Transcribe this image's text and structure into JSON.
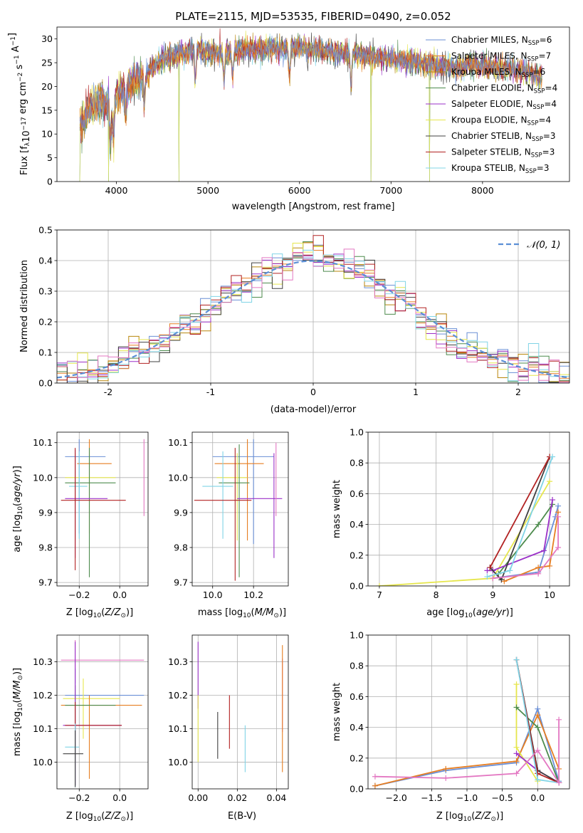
{
  "palette": [
    "#6a8fd6",
    "#e67e22",
    "#b8860b",
    "#4d8b4d",
    "#9b30c8",
    "#e6e64d",
    "#404040",
    "#b22222",
    "#80d4e6",
    "#e377c2"
  ],
  "chart_data": [
    {
      "id": "spectrum",
      "type": "line",
      "title": "PLATE=2115, MJD=53535, FIBERID=0490, z=0.052",
      "xlabel": "wavelength [Angstrom, rest frame]",
      "ylabel": "Flux [f",
      "ylabel_full": "Flux [fλ10⁻¹⁷ erg cm⁻² s⁻¹ A⁻¹]",
      "xlim": [
        3350,
        8950
      ],
      "ylim": [
        0,
        32.5
      ],
      "xticks": [
        4000,
        5000,
        6000,
        7000,
        8000
      ],
      "yticks": [
        0,
        5,
        10,
        15,
        20,
        25,
        30
      ],
      "grid": false,
      "legend_position": "upper-right",
      "legend": [
        {
          "base": "Chabrier MILES, N",
          "sub": "SSP",
          "tail": "=6"
        },
        {
          "base": "Salpeter MILES, N",
          "sub": "SSP",
          "tail": "=7"
        },
        {
          "base": "Kroupa MILES, N",
          "sub": "SSP",
          "tail": "=6"
        },
        {
          "base": "Chabrier ELODIE, N",
          "sub": "SSP",
          "tail": "=4"
        },
        {
          "base": "Salpeter ELODIE, N",
          "sub": "SSP",
          "tail": "=4"
        },
        {
          "base": "Kroupa ELODIE, N",
          "sub": "SSP",
          "tail": "=4"
        },
        {
          "base": "Chabrier STELIB, N",
          "sub": "SSP",
          "tail": "=3"
        },
        {
          "base": "Salpeter STELIB, N",
          "sub": "SSP",
          "tail": "=3"
        },
        {
          "base": "Kroupa STELIB, N",
          "sub": "SSP",
          "tail": "=3"
        }
      ],
      "continuum_anchor_points": {
        "x": [
          3600,
          3650,
          3700,
          3800,
          3900,
          3950,
          4000,
          4100,
          4200,
          4300,
          4400,
          4500,
          4700,
          4900,
          5100,
          5300,
          5500,
          5700,
          5900,
          6100,
          6300,
          6500,
          6700,
          6900,
          7100,
          7300,
          7500,
          7700,
          7900,
          8100,
          8300,
          8500,
          8650
        ],
        "y": [
          12.0,
          13.5,
          15.0,
          17.0,
          16.0,
          14.0,
          18.0,
          20.0,
          21.0,
          22.0,
          24.0,
          26.0,
          27.0,
          27.5,
          27.0,
          27.5,
          28.0,
          28.0,
          28.0,
          28.0,
          27.5,
          27.0,
          26.5,
          26.0,
          25.5,
          25.0,
          24.5,
          24.0,
          24.5,
          24.0,
          23.5,
          23.0,
          22.0
        ]
      },
      "absorption_features_x": [
        3934,
        3969,
        4102,
        4304,
        4861,
        5175,
        5270,
        5890,
        6563
      ],
      "data_gaps_x": [
        3600,
        3915,
        4685,
        6780,
        7420
      ]
    },
    {
      "id": "residuals",
      "type": "step",
      "xlabel": "(data-model)/error",
      "ylabel": "Normed distribution",
      "xlim": [
        -2.5,
        2.5
      ],
      "ylim": [
        0,
        0.5
      ],
      "xticks": [
        -2,
        -1,
        0,
        1,
        2
      ],
      "yticks": [
        0.0,
        0.1,
        0.2,
        0.3,
        0.4,
        0.5
      ],
      "grid": true,
      "legend_position": "upper-right",
      "legend_label": "𝒩(0, 1)",
      "bin_width": 0.1,
      "reference_curve": "N(0,1) dashed",
      "series_note": "9 step histograms, one per model",
      "representative_bins": {
        "x": [
          -2.45,
          -2.35,
          -2.25,
          -2.15,
          -2.05,
          -1.95,
          -1.85,
          -1.75,
          -1.65,
          -1.55,
          -1.45,
          -1.35,
          -1.25,
          -1.15,
          -1.05,
          -0.95,
          -0.85,
          -0.75,
          -0.65,
          -0.55,
          -0.45,
          -0.35,
          -0.25,
          -0.15,
          -0.05,
          0.05,
          0.15,
          0.25,
          0.35,
          0.45,
          0.55,
          0.65,
          0.75,
          0.85,
          0.95,
          1.05,
          1.15,
          1.25,
          1.35,
          1.45,
          1.55,
          1.65,
          1.75,
          1.85,
          1.95,
          2.05,
          2.15,
          2.25,
          2.35,
          2.45
        ],
        "y": [
          0.02,
          0.025,
          0.03,
          0.035,
          0.045,
          0.06,
          0.08,
          0.1,
          0.11,
          0.12,
          0.14,
          0.16,
          0.19,
          0.2,
          0.23,
          0.25,
          0.28,
          0.3,
          0.32,
          0.35,
          0.36,
          0.37,
          0.4,
          0.41,
          0.42,
          0.42,
          0.41,
          0.39,
          0.38,
          0.37,
          0.35,
          0.33,
          0.3,
          0.28,
          0.26,
          0.2,
          0.18,
          0.16,
          0.14,
          0.12,
          0.11,
          0.1,
          0.08,
          0.07,
          0.06,
          0.05,
          0.04,
          0.035,
          0.03,
          0.02
        ]
      }
    },
    {
      "id": "z_vs_age",
      "type": "errorbar",
      "xlabel": "Z [log",
      "xlabel_full": "Z [log10(Z/Z⊙)]",
      "ylabel": "age [log10(age/yr)]",
      "xlim": [
        -0.31,
        0.14
      ],
      "ylim": [
        9.69,
        10.13
      ],
      "xticks": [
        -0.2,
        0.0
      ],
      "xticklabels": [
        "−0.2",
        "0.0"
      ],
      "yticks": [
        9.7,
        9.8,
        9.9,
        10.0,
        10.1
      ],
      "grid": true,
      "points": [
        {
          "x": -0.2,
          "y": 10.06,
          "xerr": [
            0.07,
            0.13
          ],
          "yerr": [
            0.22,
            0.05
          ],
          "c": 0
        },
        {
          "x": -0.15,
          "y": 10.04,
          "xerr": [
            0.06,
            0.11
          ],
          "yerr": [
            0.2,
            0.07
          ],
          "c": 1
        },
        {
          "x": -0.22,
          "y": 10.0,
          "xerr": [
            0.05,
            0.2
          ],
          "yerr": [
            0.18,
            0.07
          ],
          "c": 5
        },
        {
          "x": -0.15,
          "y": 9.985,
          "xerr": [
            0.12,
            0.13
          ],
          "yerr": [
            0.27,
            0.1
          ],
          "c": 3
        },
        {
          "x": -0.2,
          "y": 9.975,
          "xerr": [
            0.05,
            0.04
          ],
          "yerr": [
            0.15,
            0.1
          ],
          "c": 8
        },
        {
          "x": -0.22,
          "y": 9.94,
          "xerr": [
            0.05,
            0.16
          ],
          "yerr": [
            0.17,
            0.14
          ],
          "c": 4
        },
        {
          "x": -0.22,
          "y": 9.935,
          "xerr": [
            0.07,
            0.25
          ],
          "yerr": [
            0.2,
            0.15
          ],
          "c": 7
        },
        {
          "x": 0.12,
          "y": 10.06,
          "xerr": [
            0.0,
            0.0
          ],
          "yerr": [
            0.17,
            0.05
          ],
          "c": 9
        }
      ]
    },
    {
      "id": "mass_vs_age",
      "type": "errorbar",
      "xlabel": "mass [log",
      "xlabel_full": "mass [log10(M/M⊙)]",
      "xlim": [
        9.9,
        10.37
      ],
      "ylim": [
        9.69,
        10.13
      ],
      "xticks": [
        10.0,
        10.2
      ],
      "xticklabels": [
        "10.0",
        "10.2"
      ],
      "yticks": [
        9.7,
        9.8,
        9.9,
        10.0,
        10.1
      ],
      "grid": true,
      "points": [
        {
          "x": 10.2,
          "y": 10.06,
          "xerr": [
            0.2,
            0.1
          ],
          "yerr": [
            0.25,
            0.05
          ],
          "c": 0
        },
        {
          "x": 10.17,
          "y": 10.04,
          "xerr": [
            0.16,
            0.08
          ],
          "yerr": [
            0.22,
            0.07
          ],
          "c": 1
        },
        {
          "x": 10.12,
          "y": 10.0,
          "xerr": [
            0.1,
            0.05
          ],
          "yerr": [
            0.18,
            0.07
          ],
          "c": 5
        },
        {
          "x": 10.13,
          "y": 9.985,
          "xerr": [
            0.1,
            0.05
          ],
          "yerr": [
            0.27,
            0.11
          ],
          "c": 3
        },
        {
          "x": 10.05,
          "y": 9.975,
          "xerr": [
            0.1,
            0.05
          ],
          "yerr": [
            0.15,
            0.1
          ],
          "c": 8
        },
        {
          "x": 10.3,
          "y": 9.94,
          "xerr": [
            0.18,
            0.04
          ],
          "yerr": [
            0.17,
            0.13
          ],
          "c": 4
        },
        {
          "x": 10.11,
          "y": 9.935,
          "xerr": [
            0.2,
            0.08
          ],
          "yerr": [
            0.23,
            0.15
          ],
          "c": 7
        },
        {
          "x": 10.31,
          "y": 10.06,
          "xerr": [
            0.0,
            0.0
          ],
          "yerr": [
            0.17,
            0.04
          ],
          "c": 9
        }
      ]
    },
    {
      "id": "age_vs_weight",
      "type": "line",
      "xlabel": "age [log10(age/yr)]",
      "ylabel": "mass weight",
      "xlim": [
        6.8,
        10.35
      ],
      "ylim": [
        0,
        1.0
      ],
      "xticks": [
        7,
        8,
        9,
        10
      ],
      "yticks": [
        0.0,
        0.2,
        0.4,
        0.6,
        0.8,
        1.0
      ],
      "grid": true,
      "series": [
        {
          "c": 0,
          "x": [
            9.0,
            9.8,
            10.1,
            10.15
          ],
          "y": [
            0.05,
            0.09,
            0.45,
            0.52
          ]
        },
        {
          "c": 1,
          "x": [
            9.2,
            9.8,
            10.0,
            10.15
          ],
          "y": [
            0.03,
            0.12,
            0.13,
            0.48
          ]
        },
        {
          "c": 5,
          "x": [
            7.0,
            9.0,
            10.0
          ],
          "y": [
            0.0,
            0.05,
            0.68
          ]
        },
        {
          "c": 3,
          "x": [
            9.1,
            9.8,
            10.05
          ],
          "y": [
            0.08,
            0.4,
            0.53
          ]
        },
        {
          "c": 4,
          "x": [
            8.9,
            9.0,
            9.9,
            10.05
          ],
          "y": [
            0.1,
            0.1,
            0.23,
            0.56
          ]
        },
        {
          "c": 6,
          "x": [
            8.95,
            9.15,
            10.0
          ],
          "y": [
            0.12,
            0.04,
            0.84
          ]
        },
        {
          "c": 7,
          "x": [
            8.95,
            10.0
          ],
          "y": [
            0.12,
            0.84
          ]
        },
        {
          "c": 8,
          "x": [
            8.9,
            9.3,
            10.05
          ],
          "y": [
            0.06,
            0.1,
            0.84
          ]
        },
        {
          "c": 9,
          "x": [
            9.0,
            9.8,
            10.15,
            10.15
          ],
          "y": [
            0.05,
            0.08,
            0.25,
            0.45
          ]
        }
      ]
    },
    {
      "id": "z_vs_mass",
      "type": "errorbar",
      "xlabel": "Z [log",
      "ylabel": "mass [log10(M/M⊙)]",
      "xlim": [
        -0.31,
        0.14
      ],
      "ylim": [
        9.92,
        10.38
      ],
      "xticks": [
        -0.2,
        0.0
      ],
      "xticklabels": [
        "−0.2",
        "0.0"
      ],
      "yticks": [
        10.0,
        10.1,
        10.2,
        10.3
      ],
      "grid": true,
      "points": [
        {
          "x": -0.22,
          "y": 10.305,
          "xerr": [
            0.07,
            0.34
          ],
          "yerr": [
            0.07,
            0.06
          ],
          "c": 9
        },
        {
          "x": -0.22,
          "y": 10.2,
          "xerr": [
            0.05,
            0.34
          ],
          "yerr": [
            0.27,
            0.08
          ],
          "c": 0
        },
        {
          "x": -0.18,
          "y": 10.19,
          "xerr": [
            0.1,
            0.18
          ],
          "yerr": [
            0.12,
            0.06
          ],
          "c": 5
        },
        {
          "x": -0.15,
          "y": 10.17,
          "xerr": [
            0.14,
            0.26
          ],
          "yerr": [
            0.22,
            0.03
          ],
          "c": 1
        },
        {
          "x": -0.22,
          "y": 10.17,
          "xerr": [
            0.05,
            0.2
          ],
          "yerr": [
            0.17,
            0.06
          ],
          "c": 3
        },
        {
          "x": -0.22,
          "y": 10.11,
          "xerr": [
            0.06,
            0.23
          ],
          "yerr": [
            0.18,
            0.25
          ],
          "c": 4
        },
        {
          "x": -0.22,
          "y": 10.11,
          "xerr": [
            0.05,
            0.23
          ],
          "yerr": [
            0.18,
            0.07
          ],
          "c": 7
        },
        {
          "x": -0.22,
          "y": 10.045,
          "xerr": [
            0.05,
            0.02
          ],
          "yerr": [
            0.12,
            0.07
          ],
          "c": 8
        },
        {
          "x": -0.22,
          "y": 10.025,
          "xerr": [
            0.06,
            0.04
          ],
          "yerr": [
            0.1,
            0.07
          ],
          "c": 6
        }
      ]
    },
    {
      "id": "ebv_vs_mass",
      "type": "errorbar",
      "xlabel": "E(B-V)",
      "xlim": [
        -0.003,
        0.046
      ],
      "ylim": [
        9.92,
        10.38
      ],
      "xticks": [
        0.0,
        0.02,
        0.04
      ],
      "xticklabels": [
        "0.00",
        "0.02",
        "0.04"
      ],
      "yticks": [
        10.0,
        10.1,
        10.2,
        10.3
      ],
      "grid": true,
      "points": [
        {
          "x": 0.0,
          "y": 10.26,
          "xerr": [
            0,
            0
          ],
          "yerr": [
            0.1,
            0.1
          ],
          "c": 4
        },
        {
          "x": 0.0,
          "y": 10.1,
          "xerr": [
            0,
            0
          ],
          "yerr": [
            0.1,
            0.1
          ],
          "c": 5
        },
        {
          "x": 0.01,
          "y": 10.08,
          "xerr": [
            0,
            0
          ],
          "yerr": [
            0.07,
            0.07
          ],
          "c": 6
        },
        {
          "x": 0.016,
          "y": 10.12,
          "xerr": [
            0,
            0
          ],
          "yerr": [
            0.08,
            0.08
          ],
          "c": 7
        },
        {
          "x": 0.024,
          "y": 10.04,
          "xerr": [
            0,
            0
          ],
          "yerr": [
            0.07,
            0.07
          ],
          "c": 8
        },
        {
          "x": 0.043,
          "y": 10.2,
          "xerr": [
            0,
            0
          ],
          "yerr": [
            0.11,
            0.11
          ],
          "c": 9
        },
        {
          "x": 0.043,
          "y": 10.16,
          "xerr": [
            0,
            0
          ],
          "yerr": [
            0.19,
            0.19
          ],
          "c": 1
        }
      ]
    },
    {
      "id": "z_vs_weight",
      "type": "line",
      "xlabel": "Z [log10(Z/Z⊙)]",
      "ylabel": "mass weight",
      "xlim": [
        -2.4,
        0.45
      ],
      "ylim": [
        0,
        1.0
      ],
      "xticks": [
        -2.0,
        -1.5,
        -1.0,
        -0.5,
        0.0
      ],
      "xticklabels": [
        "−2.0",
        "−1.5",
        "−1.0",
        "−0.5",
        "0.0"
      ],
      "yticks": [
        0.0,
        0.2,
        0.4,
        0.6,
        0.8,
        1.0
      ],
      "grid": true,
      "series": [
        {
          "c": 0,
          "x": [
            -2.3,
            -1.3,
            -0.3,
            0.0,
            0.3
          ],
          "y": [
            0.02,
            0.12,
            0.17,
            0.52,
            0.05
          ]
        },
        {
          "c": 1,
          "x": [
            -2.3,
            -1.3,
            -0.3,
            0.0,
            0.3
          ],
          "y": [
            0.02,
            0.13,
            0.18,
            0.48,
            0.13
          ]
        },
        {
          "c": 5,
          "x": [
            -0.3,
            -0.3,
            0.0
          ],
          "y": [
            0.68,
            0.27,
            0.05
          ]
        },
        {
          "c": 3,
          "x": [
            -0.3,
            0.0,
            0.3
          ],
          "y": [
            0.53,
            0.4,
            0.04
          ]
        },
        {
          "c": 4,
          "x": [
            -0.3,
            0.0,
            0.3
          ],
          "y": [
            0.23,
            0.12,
            0.04
          ]
        },
        {
          "c": 6,
          "x": [
            -0.3,
            0.0,
            0.3
          ],
          "y": [
            0.84,
            0.12,
            0.04
          ]
        },
        {
          "c": 7,
          "x": [
            -0.3,
            0.0,
            0.3
          ],
          "y": [
            0.84,
            0.1,
            0.04
          ]
        },
        {
          "c": 8,
          "x": [
            -0.3,
            0.0,
            0.3
          ],
          "y": [
            0.84,
            0.06,
            0.04
          ]
        },
        {
          "c": 9,
          "x": [
            -2.3,
            -1.3,
            -0.3,
            0.0,
            0.3,
            0.3
          ],
          "y": [
            0.08,
            0.07,
            0.1,
            0.25,
            0.04,
            0.45
          ]
        }
      ]
    }
  ]
}
